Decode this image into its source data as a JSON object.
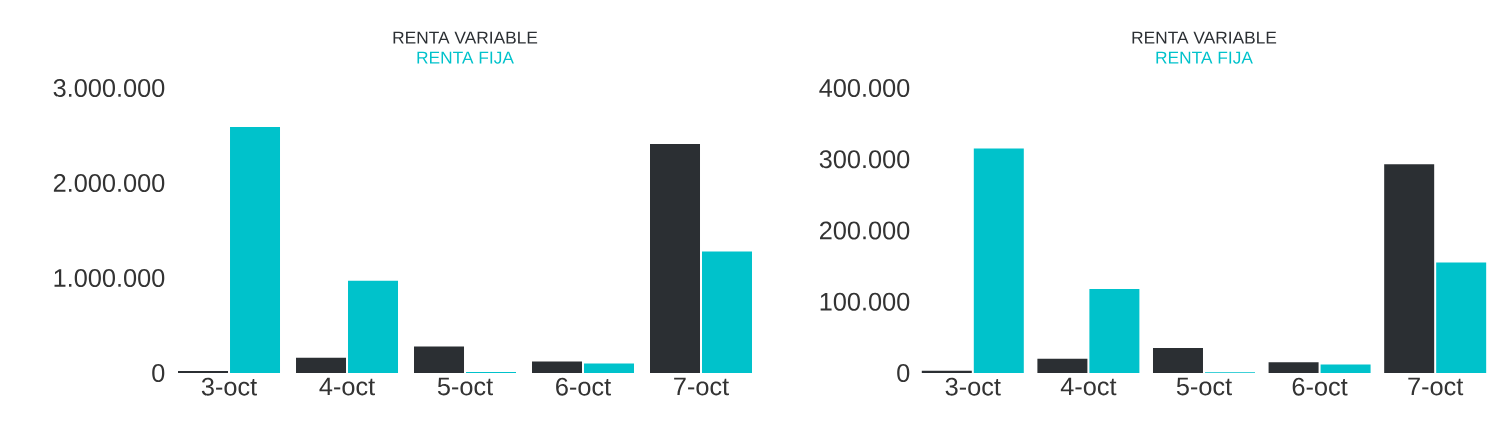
{
  "chart_data": [
    {
      "type": "bar",
      "categories": [
        "3-oct",
        "4-oct",
        "5-oct",
        "6-oct",
        "7-oct"
      ],
      "legend": "top",
      "grid": false,
      "ylim": [
        0,
        3000000
      ],
      "yticks": [
        {
          "value": 0,
          "label": "0"
        },
        {
          "value": 1000000,
          "label": "1.000.000"
        },
        {
          "value": 2000000,
          "label": "2.000.000"
        },
        {
          "value": 3000000,
          "label": "3.000.000"
        }
      ],
      "series": [
        {
          "name": "RENTA VARIABLE",
          "color": "#2b2f33",
          "values": [
            20000,
            160000,
            280000,
            120000,
            2410000
          ]
        },
        {
          "name": "RENTA FIJA",
          "color": "#00c2cb",
          "values": [
            2590000,
            970000,
            10000,
            100000,
            1280000
          ]
        }
      ]
    },
    {
      "type": "bar",
      "categories": [
        "3-oct",
        "4-oct",
        "5-oct",
        "6-oct",
        "7-oct"
      ],
      "legend": "top",
      "grid": false,
      "ylim": [
        0,
        400000
      ],
      "yticks": [
        {
          "value": 0,
          "label": "0"
        },
        {
          "value": 100000,
          "label": "100.000"
        },
        {
          "value": 200000,
          "label": "200.000"
        },
        {
          "value": 300000,
          "label": "300.000"
        },
        {
          "value": 400000,
          "label": "400.000"
        }
      ],
      "series": [
        {
          "name": "RENTA VARIABLE",
          "color": "#2b2f33",
          "values": [
            3000,
            20000,
            35000,
            15000,
            293000
          ]
        },
        {
          "name": "RENTA FIJA",
          "color": "#00c2cb",
          "values": [
            315000,
            118000,
            1000,
            12000,
            155000
          ]
        }
      ]
    }
  ]
}
